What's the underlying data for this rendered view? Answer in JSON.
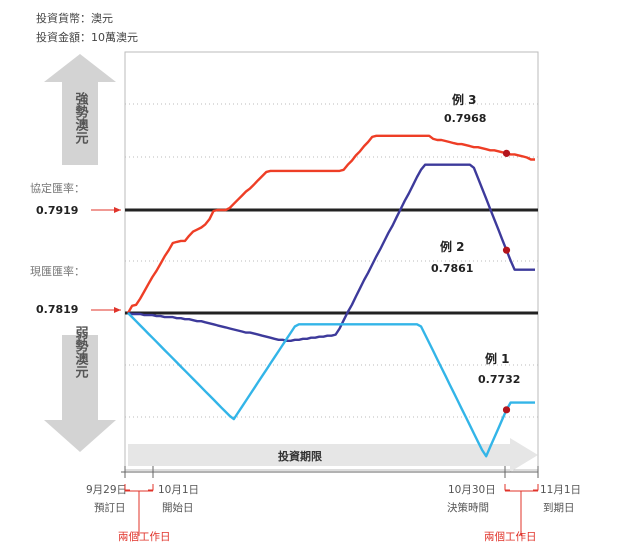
{
  "header": {
    "currency_line": "投資貨幣：澳元",
    "amount_line": "投資金額：10萬澳元"
  },
  "labels": {
    "strong": "強勢澳元",
    "weak": "弱勢澳元",
    "strike_caption": "協定匯率：",
    "spot_caption": "現匯匯率：",
    "period": "投資期限",
    "two_days_left": "兩個工作日",
    "two_days_right": "兩個工作日"
  },
  "reference_lines": {
    "strike": "0.7919",
    "spot": "0.7819"
  },
  "timeline": [
    {
      "date": "9月29日",
      "desc": "預訂日"
    },
    {
      "date": "10月1日",
      "desc": "開始日"
    },
    {
      "date": "10月30日",
      "desc": "決策時間"
    },
    {
      "date": "11月1日",
      "desc": "到期日"
    }
  ],
  "colors": {
    "example1": "#33b5e8",
    "example2": "#3d3a9b",
    "example3": "#ee3e26",
    "ref_line": "#222222",
    "marker": "#b3141c",
    "arrow_grey": "#d3d3d3",
    "annot_red": "#e0332a"
  },
  "chart_data": {
    "type": "line",
    "title": "",
    "xlabel": "投資期限",
    "ylabel": "",
    "x": [
      0,
      1,
      2,
      3,
      4,
      5,
      6,
      7,
      8,
      9,
      10,
      11,
      12,
      13,
      14,
      15,
      16,
      17,
      18,
      19,
      20,
      21,
      22,
      23,
      24,
      25,
      26,
      27,
      28,
      29,
      30,
      31,
      32,
      33,
      34,
      35,
      36,
      37,
      38,
      39,
      40,
      41,
      42,
      43,
      44,
      45,
      46,
      47,
      48,
      49,
      50,
      51,
      52,
      53,
      54,
      55,
      56,
      57,
      58,
      59,
      60,
      61,
      62,
      63,
      64,
      65,
      66,
      67,
      68,
      69,
      70,
      71,
      72,
      73,
      74,
      75,
      76,
      77,
      78,
      79,
      80,
      81,
      82,
      83,
      84,
      85,
      86,
      87,
      88,
      89,
      90,
      91,
      92,
      93,
      94,
      95,
      96,
      97,
      98,
      99,
      100
    ],
    "series": [
      {
        "name": "例 3",
        "point_label": "0.7968",
        "values": [
          0.7819,
          0.7826,
          0.7827,
          0.7833,
          0.784,
          0.7847,
          0.7854,
          0.786,
          0.7867,
          0.7874,
          0.788,
          0.7887,
          0.7888,
          0.7889,
          0.7889,
          0.7894,
          0.7898,
          0.79,
          0.7902,
          0.7905,
          0.791,
          0.7918,
          0.7919,
          0.7919,
          0.7919,
          0.7921,
          0.7925,
          0.7929,
          0.7933,
          0.7937,
          0.794,
          0.7944,
          0.7948,
          0.7952,
          0.7956,
          0.7957,
          0.7957,
          0.7957,
          0.7957,
          0.7957,
          0.7957,
          0.7957,
          0.7957,
          0.7957,
          0.7957,
          0.7957,
          0.7957,
          0.7957,
          0.7957,
          0.7957,
          0.7957,
          0.7957,
          0.7957,
          0.7958,
          0.7963,
          0.7967,
          0.7972,
          0.7976,
          0.7981,
          0.7985,
          0.799,
          0.7991,
          0.7991,
          0.7991,
          0.7991,
          0.7991,
          0.7991,
          0.7991,
          0.7991,
          0.7991,
          0.7991,
          0.7991,
          0.7991,
          0.7991,
          0.7991,
          0.7988,
          0.7987,
          0.7987,
          0.7986,
          0.7985,
          0.7984,
          0.7983,
          0.7983,
          0.7982,
          0.7981,
          0.798,
          0.798,
          0.7979,
          0.7978,
          0.7977,
          0.7977,
          0.7976,
          0.7975,
          0.7974,
          0.7973,
          0.7973,
          0.7972,
          0.7971,
          0.797,
          0.7968,
          0.7968
        ]
      },
      {
        "name": "例 2",
        "point_label": "0.7861",
        "values": [
          0.7819,
          0.7818,
          0.7818,
          0.7818,
          0.7817,
          0.7817,
          0.7817,
          0.7816,
          0.7816,
          0.7815,
          0.7815,
          0.7815,
          0.7814,
          0.7814,
          0.7813,
          0.7813,
          0.7812,
          0.7811,
          0.7811,
          0.781,
          0.7809,
          0.7808,
          0.7807,
          0.7806,
          0.7805,
          0.7804,
          0.7803,
          0.7802,
          0.7801,
          0.78,
          0.78,
          0.7799,
          0.7798,
          0.7797,
          0.7796,
          0.7795,
          0.7794,
          0.7793,
          0.7793,
          0.7792,
          0.7792,
          0.7793,
          0.7793,
          0.7794,
          0.7794,
          0.7795,
          0.7795,
          0.7796,
          0.7796,
          0.7797,
          0.7797,
          0.7798,
          0.7804,
          0.7812,
          0.782,
          0.7827,
          0.7835,
          0.7843,
          0.7851,
          0.7858,
          0.7866,
          0.7874,
          0.7881,
          0.7889,
          0.7897,
          0.7904,
          0.7912,
          0.792,
          0.7928,
          0.7935,
          0.7943,
          0.7951,
          0.7958,
          0.7963,
          0.7963,
          0.7963,
          0.7963,
          0.7963,
          0.7963,
          0.7963,
          0.7963,
          0.7963,
          0.7963,
          0.7963,
          0.7963,
          0.796,
          0.795,
          0.794,
          0.793,
          0.792,
          0.791,
          0.79,
          0.789,
          0.788,
          0.787,
          0.7861,
          0.7861,
          0.7861,
          0.7861,
          0.7861,
          0.7861
        ]
      },
      {
        "name": "例 1",
        "point_label": "0.7732",
        "values": [
          0.7819,
          0.7815,
          0.7811,
          0.7807,
          0.7803,
          0.7799,
          0.7795,
          0.7791,
          0.7787,
          0.7783,
          0.7779,
          0.7775,
          0.7771,
          0.7767,
          0.7763,
          0.7759,
          0.7755,
          0.7751,
          0.7747,
          0.7743,
          0.7739,
          0.7735,
          0.7731,
          0.7727,
          0.7723,
          0.7719,
          0.7716,
          0.7722,
          0.7728,
          0.7734,
          0.774,
          0.7746,
          0.7752,
          0.7758,
          0.7764,
          0.777,
          0.7776,
          0.7782,
          0.7788,
          0.7794,
          0.78,
          0.7806,
          0.7808,
          0.7808,
          0.7808,
          0.7808,
          0.7808,
          0.7808,
          0.7808,
          0.7808,
          0.7808,
          0.7808,
          0.7808,
          0.7808,
          0.7808,
          0.7808,
          0.7808,
          0.7808,
          0.7808,
          0.7808,
          0.7808,
          0.7808,
          0.7808,
          0.7808,
          0.7808,
          0.7808,
          0.7808,
          0.7808,
          0.7808,
          0.7808,
          0.7808,
          0.7808,
          0.7806,
          0.7798,
          0.779,
          0.7782,
          0.7774,
          0.7766,
          0.7758,
          0.775,
          0.7742,
          0.7734,
          0.7726,
          0.7718,
          0.771,
          0.7702,
          0.7694,
          0.7686,
          0.768,
          0.7689,
          0.7698,
          0.7707,
          0.7716,
          0.7725,
          0.7732,
          0.7732,
          0.7732,
          0.7732,
          0.7732,
          0.7732,
          0.7732
        ]
      }
    ],
    "reference_lines": [
      0.7919,
      0.7819
    ],
    "grid": true,
    "legend": "none"
  }
}
